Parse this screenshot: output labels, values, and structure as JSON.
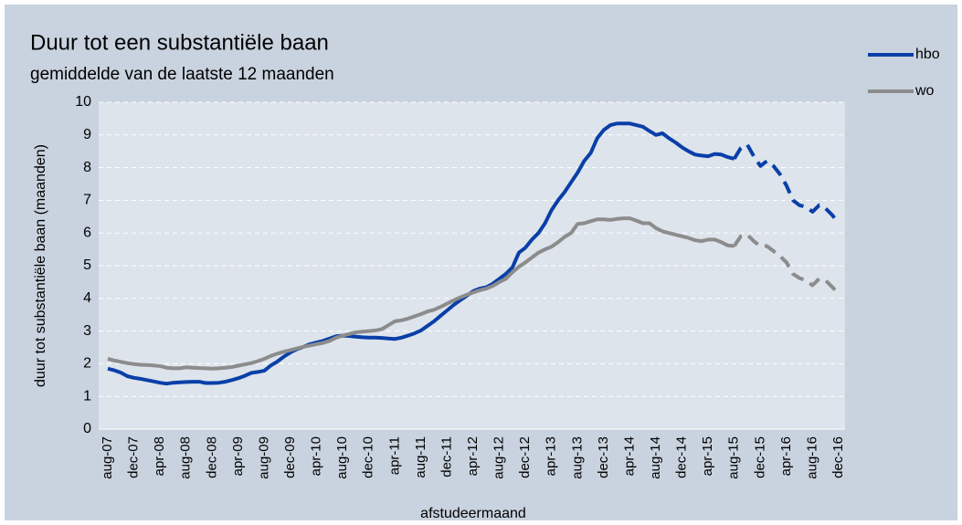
{
  "chart_data": {
    "type": "line",
    "title": "Duur tot een substantiële baan",
    "subtitle": "gemiddelde van de laatste 12 maanden",
    "y_label": "duur tot substantiële baan (maanden)",
    "x_label": "afstudeermaand",
    "ylim": [
      0,
      10
    ],
    "yticks": [
      0,
      1,
      2,
      3,
      4,
      5,
      6,
      7,
      8,
      9,
      10
    ],
    "grid": true,
    "legend": "right",
    "dash_from": "aug-15",
    "categories": [
      "aug-07",
      null,
      null,
      null,
      "dec-07",
      null,
      null,
      null,
      "apr-08",
      null,
      null,
      null,
      "aug-08",
      null,
      null,
      null,
      "dec-08",
      null,
      null,
      null,
      "apr-09",
      null,
      null,
      null,
      "aug-09",
      null,
      null,
      null,
      "dec-09",
      null,
      null,
      null,
      "apr-10",
      null,
      null,
      null,
      "aug-10",
      null,
      null,
      null,
      "dec-10",
      null,
      null,
      null,
      "apr-11",
      null,
      null,
      null,
      "aug-11",
      null,
      null,
      null,
      "dec-11",
      null,
      null,
      null,
      "apr-12",
      null,
      null,
      null,
      "aug-12",
      null,
      null,
      null,
      "dec-12",
      null,
      null,
      null,
      "apr-13",
      null,
      null,
      null,
      "aug-13",
      null,
      null,
      null,
      "dec-13",
      null,
      null,
      null,
      "apr-14",
      null,
      null,
      null,
      "aug-14",
      null,
      null,
      null,
      "dec-14",
      null,
      null,
      null,
      "apr-15",
      null,
      null,
      null,
      "aug-15",
      null,
      null,
      null,
      "dec-15",
      null,
      null,
      null,
      "apr-16",
      null,
      null,
      null,
      "aug-16",
      null,
      null,
      null,
      "dec-16"
    ],
    "series": [
      {
        "name": "hbo",
        "color": "#0a3fa8",
        "values": [
          1.85,
          1.8,
          1.73,
          1.62,
          1.57,
          1.54,
          1.5,
          1.46,
          1.42,
          1.39,
          1.42,
          1.43,
          1.44,
          1.45,
          1.45,
          1.41,
          1.41,
          1.42,
          1.45,
          1.5,
          1.56,
          1.63,
          1.72,
          1.75,
          1.79,
          1.95,
          2.07,
          2.22,
          2.35,
          2.45,
          2.52,
          2.6,
          2.65,
          2.7,
          2.77,
          2.84,
          2.86,
          2.85,
          2.83,
          2.81,
          2.8,
          2.8,
          2.79,
          2.77,
          2.76,
          2.8,
          2.86,
          2.93,
          3.02,
          3.16,
          3.3,
          3.47,
          3.63,
          3.8,
          3.94,
          4.08,
          4.22,
          4.3,
          4.34,
          4.45,
          4.6,
          4.75,
          4.95,
          5.4,
          5.55,
          5.8,
          6.0,
          6.3,
          6.7,
          7.0,
          7.25,
          7.55,
          7.85,
          8.2,
          8.45,
          8.9,
          9.15,
          9.3,
          9.35,
          9.35,
          9.35,
          9.3,
          9.25,
          9.12,
          9.0,
          9.05,
          8.9,
          8.77,
          8.62,
          8.5,
          8.4,
          8.37,
          8.35,
          8.42,
          8.4,
          8.32,
          8.27,
          8.6,
          8.7,
          8.35,
          8.05,
          8.2,
          8.05,
          7.8,
          7.45,
          7.0,
          6.85,
          6.8,
          6.65,
          6.85,
          6.75,
          6.55,
          6.3
        ]
      },
      {
        "name": "wo",
        "color": "#8c8c8c",
        "values": [
          2.15,
          2.1,
          2.06,
          2.02,
          1.99,
          1.97,
          1.96,
          1.95,
          1.93,
          1.88,
          1.86,
          1.86,
          1.89,
          1.88,
          1.87,
          1.86,
          1.85,
          1.86,
          1.88,
          1.9,
          1.94,
          1.98,
          2.02,
          2.08,
          2.15,
          2.24,
          2.31,
          2.37,
          2.42,
          2.47,
          2.52,
          2.56,
          2.6,
          2.64,
          2.7,
          2.8,
          2.86,
          2.91,
          2.96,
          2.98,
          3.0,
          3.02,
          3.06,
          3.18,
          3.3,
          3.33,
          3.38,
          3.45,
          3.52,
          3.6,
          3.65,
          3.74,
          3.84,
          3.94,
          4.03,
          4.11,
          4.18,
          4.25,
          4.3,
          4.38,
          4.5,
          4.6,
          4.8,
          4.97,
          5.1,
          5.25,
          5.4,
          5.5,
          5.58,
          5.72,
          5.88,
          6.0,
          6.28,
          6.3,
          6.36,
          6.42,
          6.42,
          6.4,
          6.43,
          6.45,
          6.45,
          6.38,
          6.3,
          6.3,
          6.15,
          6.05,
          6.0,
          5.95,
          5.9,
          5.85,
          5.78,
          5.75,
          5.8,
          5.8,
          5.72,
          5.62,
          5.6,
          5.9,
          5.95,
          5.75,
          5.6,
          5.6,
          5.45,
          5.3,
          5.1,
          4.75,
          4.62,
          4.55,
          4.4,
          4.6,
          4.55,
          4.35,
          4.15
        ]
      }
    ]
  }
}
